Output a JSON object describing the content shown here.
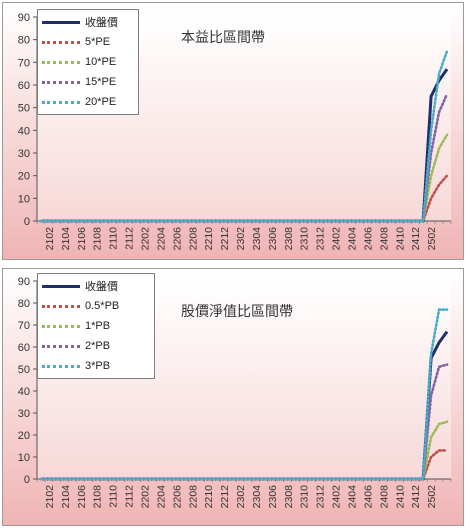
{
  "chart_data": [
    {
      "type": "line",
      "title": "本益比區間帶",
      "xlabel": "",
      "ylabel": "",
      "ylim": [
        0,
        90
      ],
      "yticks": [
        0,
        10,
        20,
        30,
        40,
        50,
        60,
        70,
        80,
        90
      ],
      "x_tick_labels": [
        "2102",
        "2104",
        "2106",
        "2108",
        "2110",
        "2112",
        "2202",
        "2204",
        "2206",
        "2208",
        "2210",
        "2212",
        "2302",
        "2304",
        "2306",
        "2308",
        "2310",
        "2312",
        "2402",
        "2404",
        "2406",
        "2408",
        "2410",
        "2412",
        "2502"
      ],
      "x": [
        "2101",
        "2102",
        "2103",
        "2104",
        "2105",
        "2106",
        "2107",
        "2108",
        "2109",
        "2110",
        "2111",
        "2112",
        "2201",
        "2202",
        "2203",
        "2204",
        "2205",
        "2206",
        "2207",
        "2208",
        "2209",
        "2210",
        "2211",
        "2212",
        "2301",
        "2302",
        "2303",
        "2304",
        "2305",
        "2306",
        "2307",
        "2308",
        "2309",
        "2310",
        "2311",
        "2312",
        "2401",
        "2402",
        "2403",
        "2404",
        "2405",
        "2406",
        "2407",
        "2408",
        "2409",
        "2410",
        "2411",
        "2412",
        "2501",
        "2502",
        "2503",
        "2504"
      ],
      "grid": false,
      "legend_position": "top-left",
      "series": [
        {
          "name": "收盤價",
          "color": "#1f2e6e",
          "style": "solid",
          "values": [
            0,
            0,
            0,
            0,
            0,
            0,
            0,
            0,
            0,
            0,
            0,
            0,
            0,
            0,
            0,
            0,
            0,
            0,
            0,
            0,
            0,
            0,
            0,
            0,
            0,
            0,
            0,
            0,
            0,
            0,
            0,
            0,
            0,
            0,
            0,
            0,
            0,
            0,
            0,
            0,
            0,
            0,
            0,
            0,
            0,
            0,
            0,
            0,
            0,
            55,
            62,
            67
          ]
        },
        {
          "name": "5*PE",
          "color": "#c0504d",
          "style": "dotted",
          "values": [
            0,
            0,
            0,
            0,
            0,
            0,
            0,
            0,
            0,
            0,
            0,
            0,
            0,
            0,
            0,
            0,
            0,
            0,
            0,
            0,
            0,
            0,
            0,
            0,
            0,
            0,
            0,
            0,
            0,
            0,
            0,
            0,
            0,
            0,
            0,
            0,
            0,
            0,
            0,
            0,
            0,
            0,
            0,
            0,
            0,
            0,
            0,
            0,
            0,
            10,
            16,
            20
          ]
        },
        {
          "name": "10*PE",
          "color": "#9bbb59",
          "style": "dotted",
          "values": [
            0,
            0,
            0,
            0,
            0,
            0,
            0,
            0,
            0,
            0,
            0,
            0,
            0,
            0,
            0,
            0,
            0,
            0,
            0,
            0,
            0,
            0,
            0,
            0,
            0,
            0,
            0,
            0,
            0,
            0,
            0,
            0,
            0,
            0,
            0,
            0,
            0,
            0,
            0,
            0,
            0,
            0,
            0,
            0,
            0,
            0,
            0,
            0,
            0,
            20,
            32,
            38
          ]
        },
        {
          "name": "15*PE",
          "color": "#8064a2",
          "style": "dotted",
          "values": [
            0,
            0,
            0,
            0,
            0,
            0,
            0,
            0,
            0,
            0,
            0,
            0,
            0,
            0,
            0,
            0,
            0,
            0,
            0,
            0,
            0,
            0,
            0,
            0,
            0,
            0,
            0,
            0,
            0,
            0,
            0,
            0,
            0,
            0,
            0,
            0,
            0,
            0,
            0,
            0,
            0,
            0,
            0,
            0,
            0,
            0,
            0,
            0,
            0,
            30,
            48,
            56
          ]
        },
        {
          "name": "20*PE",
          "color": "#4bacc6",
          "style": "dotted",
          "values": [
            0,
            0,
            0,
            0,
            0,
            0,
            0,
            0,
            0,
            0,
            0,
            0,
            0,
            0,
            0,
            0,
            0,
            0,
            0,
            0,
            0,
            0,
            0,
            0,
            0,
            0,
            0,
            0,
            0,
            0,
            0,
            0,
            0,
            0,
            0,
            0,
            0,
            0,
            0,
            0,
            0,
            0,
            0,
            0,
            0,
            0,
            0,
            0,
            0,
            40,
            65,
            75
          ]
        }
      ]
    },
    {
      "type": "line",
      "title": "股價淨值比區間帶",
      "xlabel": "",
      "ylabel": "",
      "ylim": [
        0,
        90
      ],
      "yticks": [
        0,
        10,
        20,
        30,
        40,
        50,
        60,
        70,
        80,
        90
      ],
      "x_tick_labels": [
        "2102",
        "2104",
        "2106",
        "2108",
        "2110",
        "2112",
        "2202",
        "2204",
        "2206",
        "2208",
        "2210",
        "2212",
        "2302",
        "2304",
        "2306",
        "2308",
        "2310",
        "2312",
        "2402",
        "2404",
        "2406",
        "2408",
        "2410",
        "2412",
        "2502"
      ],
      "x": [
        "2101",
        "2102",
        "2103",
        "2104",
        "2105",
        "2106",
        "2107",
        "2108",
        "2109",
        "2110",
        "2111",
        "2112",
        "2201",
        "2202",
        "2203",
        "2204",
        "2205",
        "2206",
        "2207",
        "2208",
        "2209",
        "2210",
        "2211",
        "2212",
        "2301",
        "2302",
        "2303",
        "2304",
        "2305",
        "2306",
        "2307",
        "2308",
        "2309",
        "2310",
        "2311",
        "2312",
        "2401",
        "2402",
        "2403",
        "2404",
        "2405",
        "2406",
        "2407",
        "2408",
        "2409",
        "2410",
        "2411",
        "2412",
        "2501",
        "2502",
        "2503",
        "2504"
      ],
      "grid": false,
      "legend_position": "top-left",
      "series": [
        {
          "name": "收盤價",
          "color": "#1f2e6e",
          "style": "solid",
          "values": [
            0,
            0,
            0,
            0,
            0,
            0,
            0,
            0,
            0,
            0,
            0,
            0,
            0,
            0,
            0,
            0,
            0,
            0,
            0,
            0,
            0,
            0,
            0,
            0,
            0,
            0,
            0,
            0,
            0,
            0,
            0,
            0,
            0,
            0,
            0,
            0,
            0,
            0,
            0,
            0,
            0,
            0,
            0,
            0,
            0,
            0,
            0,
            0,
            0,
            55,
            62,
            67
          ]
        },
        {
          "name": "0.5*PB",
          "color": "#c0504d",
          "style": "dotted",
          "values": [
            0,
            0,
            0,
            0,
            0,
            0,
            0,
            0,
            0,
            0,
            0,
            0,
            0,
            0,
            0,
            0,
            0,
            0,
            0,
            0,
            0,
            0,
            0,
            0,
            0,
            0,
            0,
            0,
            0,
            0,
            0,
            0,
            0,
            0,
            0,
            0,
            0,
            0,
            0,
            0,
            0,
            0,
            0,
            0,
            0,
            0,
            0,
            0,
            0,
            10,
            13,
            13
          ]
        },
        {
          "name": "1*PB",
          "color": "#9bbb59",
          "style": "dotted",
          "values": [
            0,
            0,
            0,
            0,
            0,
            0,
            0,
            0,
            0,
            0,
            0,
            0,
            0,
            0,
            0,
            0,
            0,
            0,
            0,
            0,
            0,
            0,
            0,
            0,
            0,
            0,
            0,
            0,
            0,
            0,
            0,
            0,
            0,
            0,
            0,
            0,
            0,
            0,
            0,
            0,
            0,
            0,
            0,
            0,
            0,
            0,
            0,
            0,
            0,
            19,
            25,
            26
          ]
        },
        {
          "name": "2*PB",
          "color": "#8064a2",
          "style": "dotted",
          "values": [
            0,
            0,
            0,
            0,
            0,
            0,
            0,
            0,
            0,
            0,
            0,
            0,
            0,
            0,
            0,
            0,
            0,
            0,
            0,
            0,
            0,
            0,
            0,
            0,
            0,
            0,
            0,
            0,
            0,
            0,
            0,
            0,
            0,
            0,
            0,
            0,
            0,
            0,
            0,
            0,
            0,
            0,
            0,
            0,
            0,
            0,
            0,
            0,
            0,
            38,
            51,
            52
          ]
        },
        {
          "name": "3*PB",
          "color": "#4bacc6",
          "style": "dotted",
          "values": [
            0,
            0,
            0,
            0,
            0,
            0,
            0,
            0,
            0,
            0,
            0,
            0,
            0,
            0,
            0,
            0,
            0,
            0,
            0,
            0,
            0,
            0,
            0,
            0,
            0,
            0,
            0,
            0,
            0,
            0,
            0,
            0,
            0,
            0,
            0,
            0,
            0,
            0,
            0,
            0,
            0,
            0,
            0,
            0,
            0,
            0,
            0,
            0,
            0,
            57,
            77,
            77
          ]
        }
      ]
    }
  ]
}
